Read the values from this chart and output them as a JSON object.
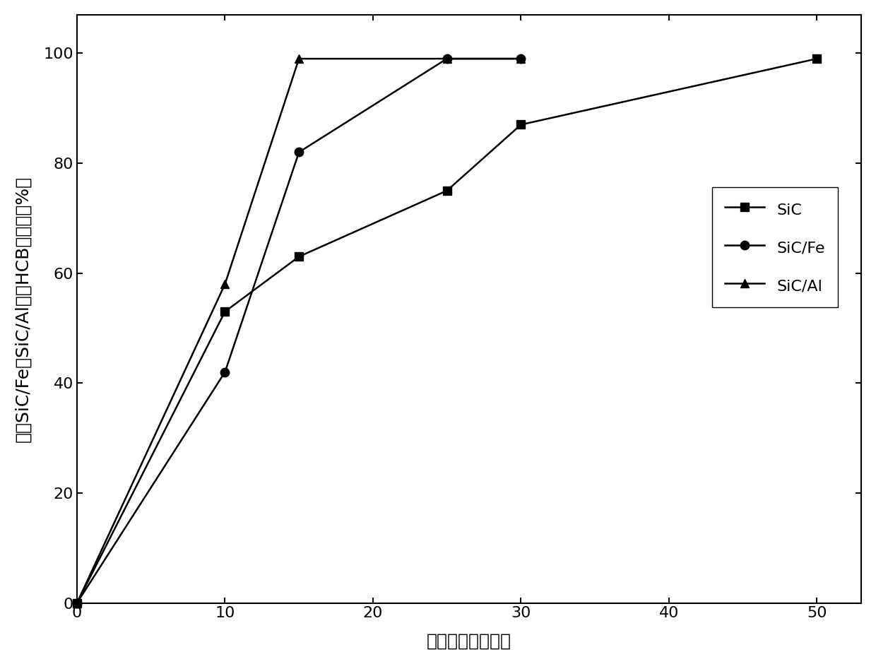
{
  "series": [
    {
      "label": "SiC",
      "x": [
        0,
        10,
        15,
        25,
        30,
        50
      ],
      "y": [
        0,
        53,
        63,
        75,
        87,
        99
      ],
      "marker": "s",
      "color": "#000000",
      "linewidth": 1.8,
      "markersize": 9
    },
    {
      "label": "SiC/Fe",
      "x": [
        0,
        10,
        15,
        25,
        30
      ],
      "y": [
        0,
        42,
        82,
        99,
        99
      ],
      "marker": "o",
      "color": "#000000",
      "linewidth": 1.8,
      "markersize": 9
    },
    {
      "label": "SiC/Al",
      "x": [
        0,
        10,
        15,
        25,
        30
      ],
      "y": [
        0,
        58,
        99,
        99,
        99
      ],
      "marker": "^",
      "color": "#000000",
      "linewidth": 1.8,
      "markersize": 9
    }
  ],
  "xlabel": "球磨时间（分钟）",
  "ylabel": "添加SiC/Fe和SiC/Al降解HCB的效率（%）",
  "xlim": [
    0,
    53
  ],
  "ylim": [
    0,
    107
  ],
  "xticks": [
    0,
    10,
    20,
    30,
    40,
    50
  ],
  "yticks": [
    0,
    20,
    40,
    60,
    80,
    100
  ],
  "background_color": "#ffffff",
  "figsize": [
    12.4,
    9.4
  ],
  "dpi": 100
}
